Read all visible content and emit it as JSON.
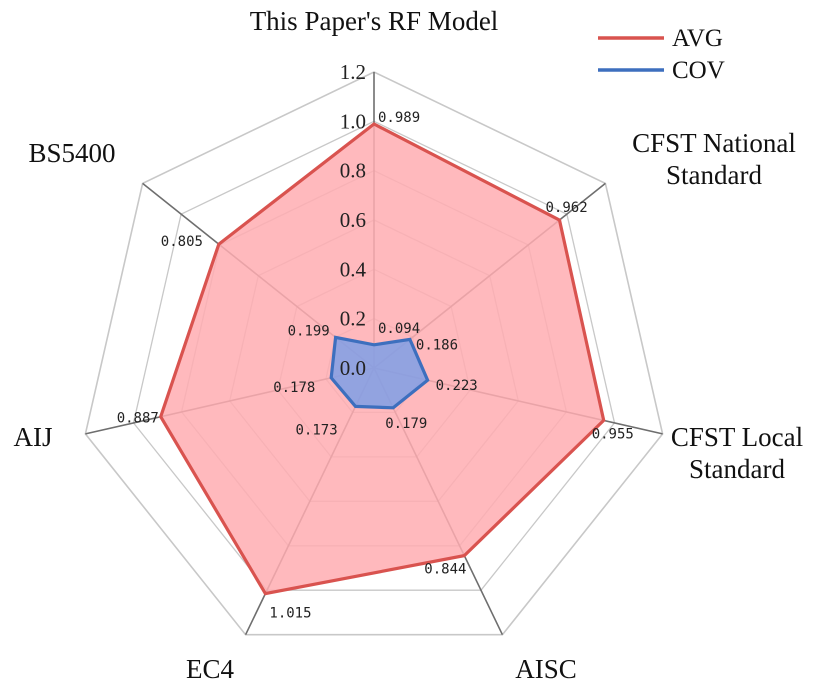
{
  "chart_data": {
    "type": "radar",
    "axes": [
      "This Paper's RF Model",
      "CFST National Standard",
      "CFST Local Standard",
      "AISC",
      "EC4",
      "AIJ",
      "BS5400"
    ],
    "axis_label_lines": [
      [
        "This Paper's RF Model"
      ],
      [
        "CFST National",
        "Standard"
      ],
      [
        "CFST Local",
        "Standard"
      ],
      [
        "AISC"
      ],
      [
        "EC4"
      ],
      [
        "AIJ"
      ],
      [
        "BS5400"
      ]
    ],
    "rlim": [
      0,
      1.2
    ],
    "ticks": [
      0,
      0.2,
      0.4,
      0.6,
      0.8,
      1.0,
      1.2
    ],
    "tick_labels": [
      "0.0",
      "0.2",
      "0.4",
      "0.6",
      "0.8",
      "1.0",
      "1.2"
    ],
    "grid": true,
    "legend_position": "top-right",
    "series": [
      {
        "name": "AVG",
        "values": [
          0.989,
          0.962,
          0.955,
          0.844,
          1.015,
          0.887,
          0.805
        ],
        "value_labels": [
          "0.989",
          "0.962",
          "0.955",
          "0.844",
          "1.015",
          "0.887",
          "0.805"
        ],
        "line_color": "#d9534f",
        "fill_color": "#ffadb1"
      },
      {
        "name": "COV",
        "values": [
          0.094,
          0.186,
          0.223,
          0.179,
          0.173,
          0.178,
          0.199
        ],
        "value_labels": [
          "0.094",
          "0.186",
          "0.223",
          "0.179",
          "0.173",
          "0.178",
          "0.199"
        ],
        "line_color": "#3d6fbe",
        "fill_color": "#7f9fe6"
      }
    ]
  }
}
